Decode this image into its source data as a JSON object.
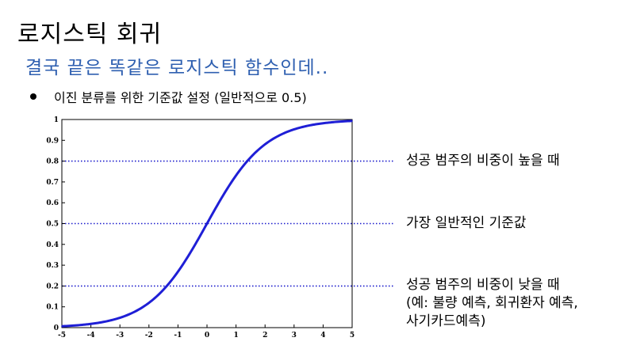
{
  "slide": {
    "title": "로지스틱 회귀",
    "subtitle": "결국 끝은 똑같은 로지스틱 함수인데..",
    "bullet": "이진 분류를 위한 기준값 설정 (일반적으로 0.5)"
  },
  "annotations": [
    {
      "y": 0.8,
      "text": "성공 범주의 비중이 높을 때"
    },
    {
      "y": 0.5,
      "text": "가장 일반적인 기준값"
    },
    {
      "y": 0.2,
      "text": "성공 범주의 비중이 낮을 때\n(예: 불량 예측, 회귀환자 예측,\n사기카드예측)"
    }
  ],
  "chart_data": {
    "type": "line",
    "x": [
      -5,
      -4.5,
      -4,
      -3.5,
      -3,
      -2.5,
      -2,
      -1.5,
      -1,
      -0.5,
      0,
      0.5,
      1,
      1.5,
      2,
      2.5,
      3,
      3.5,
      4,
      4.5,
      5
    ],
    "series": [
      {
        "values": [
          0.007,
          0.011,
          0.018,
          0.029,
          0.047,
          0.076,
          0.119,
          0.182,
          0.269,
          0.378,
          0.5,
          0.622,
          0.731,
          0.818,
          0.881,
          0.924,
          0.953,
          0.971,
          0.982,
          0.989,
          0.993
        ]
      }
    ],
    "xlim": [
      -5,
      5
    ],
    "ylim": [
      0,
      1
    ],
    "xticks": [
      "-5",
      "-4",
      "-3",
      "-2",
      "-1",
      "0",
      "1",
      "2",
      "3",
      "4",
      "5"
    ],
    "yticks": [
      "0",
      "0.1",
      "0.2",
      "0.3",
      "0.4",
      "0.5",
      "0.6",
      "0.7",
      "0.8",
      "0.9",
      "1"
    ],
    "threshold_lines": [
      0.8,
      0.5,
      0.2
    ],
    "colors": {
      "curve": "#1f1fd6",
      "threshold": "#1a1acc",
      "axis": "#000000"
    },
    "grid": false
  }
}
